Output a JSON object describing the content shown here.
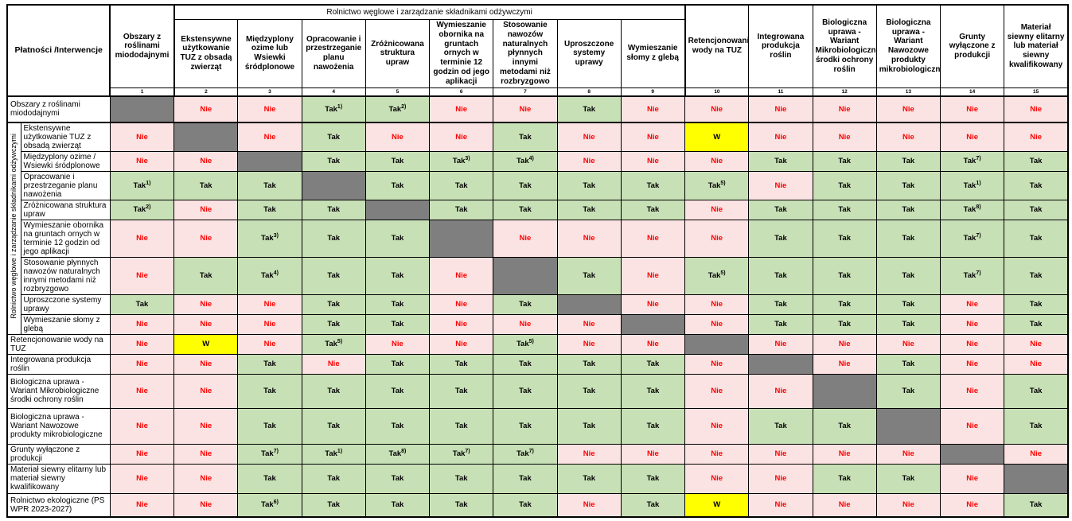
{
  "table": {
    "corner_label": "Płatności /Interwencje",
    "group_header": "Rolnictwo węglowe i zarządzanie składnikami odżywczymi",
    "row_group_label": "Rolnictwo węglowe i zarządzanie składnikami odżywczymi",
    "colors": {
      "yes_bg": "#c8e0b6",
      "no_bg": "#fce3e3",
      "diagonal_bg": "#7f7f7f",
      "conditional_bg": "#ffff00",
      "no_text": "#ff0000",
      "yes_text": "#000000"
    },
    "columns": [
      {
        "num": "1",
        "label": "Obszary z roślinami miododajnymi"
      },
      {
        "num": "2",
        "label": "Ekstensywne użytkowanie TUZ z obsadą zwierząt"
      },
      {
        "num": "3",
        "label": "Międzyplony ozime lub Wsiewki śródplonowe"
      },
      {
        "num": "4",
        "label": "Opracowanie i przestrzeganie planu nawożenia"
      },
      {
        "num": "5",
        "label": "Zróżnicowana struktura upraw"
      },
      {
        "num": "6",
        "label": "Wymieszanie obornika na gruntach ornych w terminie 12 godzin od jego aplikacji"
      },
      {
        "num": "7",
        "label": "Stosowanie nawozów naturalnych płynnych innymi metodami niż rozbryzgowo"
      },
      {
        "num": "8",
        "label": "Uproszczone systemy uprawy"
      },
      {
        "num": "9",
        "label": "Wymieszanie słomy z glebą"
      },
      {
        "num": "10",
        "label": "Retencjonowanie wody na TUZ"
      },
      {
        "num": "11",
        "label": "Integrowana produkcja roślin"
      },
      {
        "num": "12",
        "label": "Biologiczna uprawa - Wariant Mikrobiologiczne środki ochrony roślin"
      },
      {
        "num": "13",
        "label": "Biologiczna uprawa - Wariant Nawozowe produkty mikrobiologiczne"
      },
      {
        "num": "14",
        "label": "Grunty wyłączone z produkcji"
      },
      {
        "num": "15",
        "label": "Materiał siewny elitarny lub materiał siewny kwalifikowany"
      }
    ],
    "rows": [
      {
        "label": "Obszary z roślinami miododajnymi",
        "in_group": false,
        "cells": [
          "X",
          "Nie",
          "Nie",
          "Tak^1)",
          "Tak^2)",
          "Nie",
          "Nie",
          "Tak",
          "Nie",
          "Nie",
          "Nie",
          "Nie",
          "Nie",
          "Nie",
          "Nie"
        ]
      },
      {
        "label": "Ekstensywne użytkowanie TUZ z obsadą zwierząt",
        "in_group": true,
        "cells": [
          "Nie",
          "X",
          "Nie",
          "Tak",
          "Nie",
          "Nie",
          "Tak",
          "Nie",
          "Nie",
          "W",
          "Nie",
          "Nie",
          "Nie",
          "Nie",
          "Nie"
        ]
      },
      {
        "label": "Międzyplony ozime / Wsiewki śródplonowe",
        "in_group": true,
        "cells": [
          "Nie",
          "Nie",
          "X",
          "Tak",
          "Tak",
          "Tak^3)",
          "Tak^4)",
          "Nie",
          "Nie",
          "Nie",
          "Tak",
          "Tak",
          "Tak",
          "Tak^7)",
          "Tak"
        ]
      },
      {
        "label": "Opracowanie i przestrzeganie planu nawożenia",
        "in_group": true,
        "cells": [
          "Tak^1)",
          "Tak",
          "Tak",
          "X",
          "Tak",
          "Tak",
          "Tak",
          "Tak",
          "Tak",
          "Tak^5)",
          "Nie",
          "Tak",
          "Tak",
          "Tak^1)",
          "Tak"
        ]
      },
      {
        "label": "Zróżnicowana struktura upraw",
        "in_group": true,
        "cells": [
          "Tak^2)",
          "Nie",
          "Tak",
          "Tak",
          "X",
          "Tak",
          "Tak",
          "Tak",
          "Tak",
          "Nie",
          "Tak",
          "Tak",
          "Tak",
          "Tak^8)",
          "Tak"
        ]
      },
      {
        "label": "Wymieszanie obornika na gruntach ornych w terminie 12 godzin od jego aplikacji",
        "in_group": true,
        "cells": [
          "Nie",
          "Nie",
          "Tak^3)",
          "Tak",
          "Tak",
          "X",
          "Nie",
          "Nie",
          "Nie",
          "Nie",
          "Tak",
          "Tak",
          "Tak",
          "Tak^7)",
          "Tak"
        ]
      },
      {
        "label": "Stosowanie płynnych nawozów naturalnych innymi metodami niż rozbryzgowo",
        "in_group": true,
        "cells": [
          "Nie",
          "Tak",
          "Tak^4)",
          "Tak",
          "Tak",
          "Nie",
          "X",
          "Tak",
          "Nie",
          "Tak^5)",
          "Tak",
          "Tak",
          "Tak",
          "Tak^7)",
          "Tak"
        ]
      },
      {
        "label": "Uproszczone systemy uprawy",
        "in_group": true,
        "cells": [
          "Tak",
          "Nie",
          "Nie",
          "Tak",
          "Tak",
          "Nie",
          "Tak",
          "X",
          "Nie",
          "Nie",
          "Tak",
          "Tak",
          "Tak",
          "Nie",
          "Tak"
        ]
      },
      {
        "label": "Wymieszanie słomy z glebą",
        "in_group": true,
        "cells": [
          "Nie",
          "Nie",
          "Nie",
          "Tak",
          "Tak",
          "Nie",
          "Nie",
          "Nie",
          "X",
          "Nie",
          "Tak",
          "Tak",
          "Tak",
          "Nie",
          "Tak"
        ]
      },
      {
        "label": "Retencjonowanie wody na TUZ",
        "in_group": false,
        "cells": [
          "Nie",
          "W",
          "Nie",
          "Tak^5)",
          "Nie",
          "Nie",
          "Tak^5)",
          "Nie",
          "Nie",
          "X",
          "Nie",
          "Nie",
          "Nie",
          "Nie",
          "Nie"
        ]
      },
      {
        "label": "Integrowana produkcja roślin",
        "in_group": false,
        "cells": [
          "Nie",
          "Nie",
          "Tak",
          "Nie",
          "Tak",
          "Tak",
          "Tak",
          "Tak",
          "Tak",
          "Nie",
          "X",
          "Nie",
          "Tak",
          "Nie",
          "Nie"
        ]
      },
      {
        "label": "Biologiczna uprawa - Wariant Mikrobiologiczne środki ochrony roślin",
        "in_group": false,
        "cells": [
          "Nie",
          "Nie",
          "Tak",
          "Tak",
          "Tak",
          "Tak",
          "Tak",
          "Tak",
          "Tak",
          "Nie",
          "Nie",
          "X",
          "Tak",
          "Nie",
          "Tak"
        ]
      },
      {
        "label": "Biologiczna uprawa - Wariant Nawozowe produkty mikrobiologiczne",
        "in_group": false,
        "cells": [
          "Nie",
          "Nie",
          "Tak",
          "Tak",
          "Tak",
          "Tak",
          "Tak",
          "Tak",
          "Tak",
          "Nie",
          "Tak",
          "Tak",
          "X",
          "Nie",
          "Tak"
        ]
      },
      {
        "label": "Grunty wyłączone z produkcji",
        "in_group": false,
        "cells": [
          "Nie",
          "Nie",
          "Tak^7)",
          "Tak^1)",
          "Tak^8)",
          "Tak^7)",
          "Tak^7)",
          "Nie",
          "Nie",
          "Nie",
          "Nie",
          "Nie",
          "Nie",
          "X",
          "Nie"
        ]
      },
      {
        "label": "Materiał siewny elitarny lub materiał siewny kwalifikowany",
        "in_group": false,
        "cells": [
          "Nie",
          "Nie",
          "Tak",
          "Tak",
          "Tak",
          "Tak",
          "Tak",
          "Tak",
          "Tak",
          "Nie",
          "Nie",
          "Tak",
          "Tak",
          "Nie",
          "X"
        ]
      },
      {
        "label": "Rolnictwo ekologiczne (PS WPR 2023-2027)",
        "in_group": false,
        "cells": [
          "Nie",
          "Nie",
          "Tak^6)",
          "Tak",
          "Tak",
          "Tak",
          "Tak",
          "Nie",
          "Tak",
          "W",
          "Nie",
          "Nie",
          "Nie",
          "Nie",
          "Tak"
        ]
      }
    ]
  }
}
